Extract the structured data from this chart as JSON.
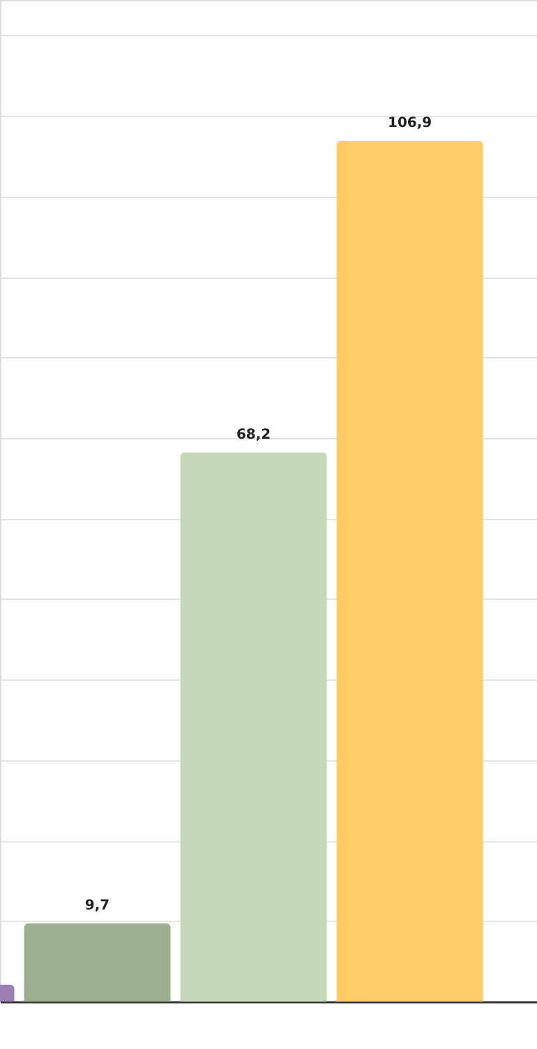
{
  "chart_data": {
    "type": "bar",
    "categories": [
      null,
      null,
      null,
      null
    ],
    "values": [
      2.1,
      9.7,
      68.2,
      106.9
    ],
    "colors": [
      "#9b7fb3",
      "#9caf90",
      "#c5d9b9",
      "#ffcc66"
    ],
    "value_labels": [
      null,
      "9,7",
      "68,2",
      "106,9"
    ],
    "ylim": [
      0,
      124.4
    ],
    "yticks": [
      {
        "value": 0,
        "label": null
      },
      {
        "value": 10,
        "label": null
      },
      {
        "value": 20,
        "label": null
      },
      {
        "value": 30,
        "label": null
      },
      {
        "value": 40,
        "label": null
      },
      {
        "value": 50,
        "label": null
      },
      {
        "value": 60,
        "label": null
      },
      {
        "value": 70,
        "label": null
      },
      {
        "value": 80,
        "label": null
      },
      {
        "value": 90,
        "label": null
      },
      {
        "value": 100,
        "label": null
      },
      {
        "value": 110,
        "label": null
      },
      {
        "value": 120,
        "label": null
      }
    ],
    "grid": "y"
  }
}
